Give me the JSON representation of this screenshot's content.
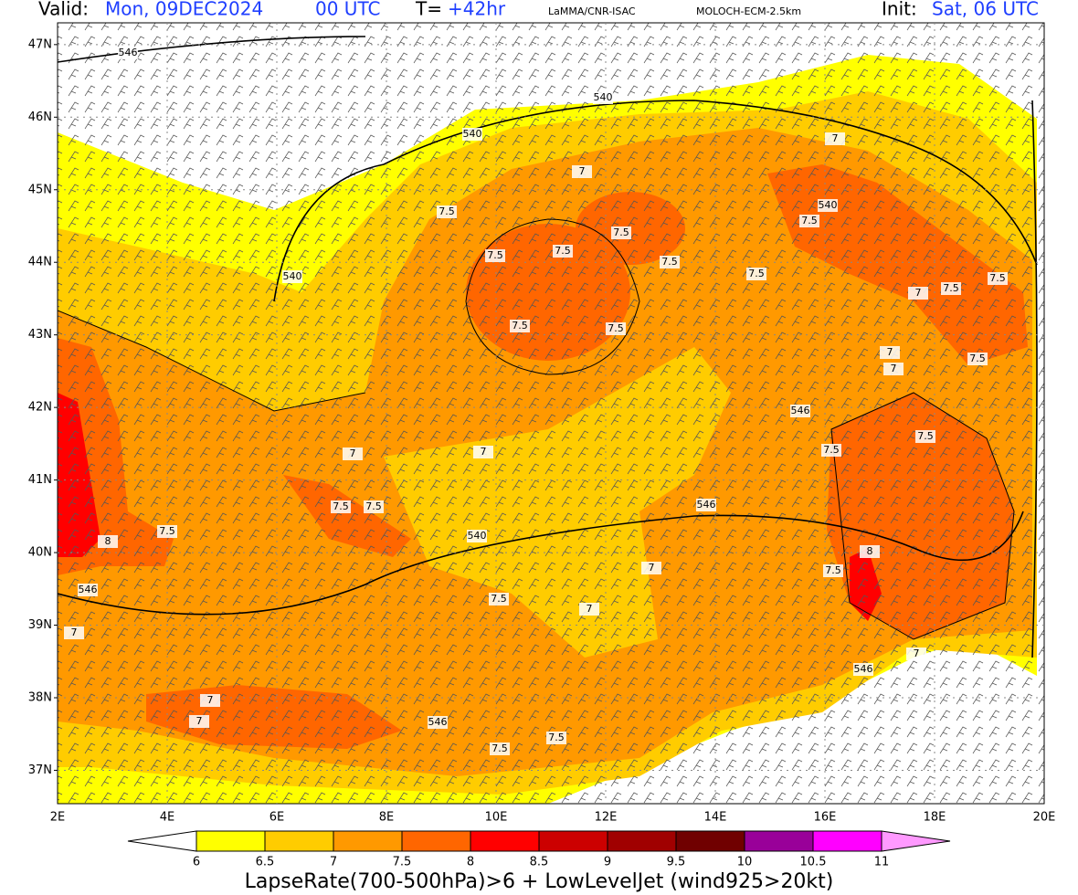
{
  "header": {
    "valid_label": "Valid:",
    "valid_date": "Mon, 09DEC2024",
    "valid_time": "00 UTC",
    "t_label": "T=",
    "t_value": "+42hr",
    "source": "LaMMA/CNR-ISAC",
    "model": "MOLOCH-ECM-2.5km",
    "init_label": "Init:",
    "init_value": "Sat, 06 UTC"
  },
  "map": {
    "xlim": [
      2,
      20
    ],
    "ylim": [
      36.54,
      47.3
    ],
    "xticks": [
      {
        "value": 2,
        "label": "2E"
      },
      {
        "value": 4,
        "label": "4E"
      },
      {
        "value": 6,
        "label": "6E"
      },
      {
        "value": 8,
        "label": "8E"
      },
      {
        "value": 10,
        "label": "10E"
      },
      {
        "value": 12,
        "label": "12E"
      },
      {
        "value": 14,
        "label": "14E"
      },
      {
        "value": 16,
        "label": "16E"
      },
      {
        "value": 18,
        "label": "18E"
      },
      {
        "value": 20,
        "label": "20E"
      }
    ],
    "yticks": [
      {
        "value": 37,
        "label": "37N"
      },
      {
        "value": 38,
        "label": "38N"
      },
      {
        "value": 39,
        "label": "39N"
      },
      {
        "value": 40,
        "label": "40N"
      },
      {
        "value": 41,
        "label": "41N"
      },
      {
        "value": 42,
        "label": "42N"
      },
      {
        "value": 43,
        "label": "43N"
      },
      {
        "value": 44,
        "label": "44N"
      },
      {
        "value": 45,
        "label": "45N"
      },
      {
        "value": 46,
        "label": "46N"
      },
      {
        "value": 47,
        "label": "47N"
      }
    ],
    "grid": true,
    "contour_labels": [
      "546",
      "540",
      "540",
      "540",
      "7",
      "7",
      "7.5",
      "7.5",
      "7.5",
      "7.5",
      "7.5",
      "7.5",
      "540",
      "7.5",
      "7",
      "7.5",
      "7",
      "7",
      "7.5",
      "7.5",
      "8",
      "7.5",
      "546",
      "7",
      "7.5",
      "7.5",
      "540",
      "7.5",
      "7",
      "7",
      "546",
      "7.5",
      "7.5",
      "546",
      "7",
      "546",
      "7",
      "7.5",
      "8",
      "7.5",
      "7",
      "546",
      "7",
      "7",
      "7.5",
      "7.5",
      "7.5"
    ]
  },
  "colorbar": {
    "levels": [
      6,
      6.5,
      7,
      7.5,
      8,
      8.5,
      9,
      9.5,
      10,
      10.5,
      11
    ],
    "colors": [
      "#ffff00",
      "#ffcc00",
      "#ff9900",
      "#ff6600",
      "#ff0000",
      "#cc0000",
      "#a00000",
      "#700000",
      "#990099",
      "#ff00ff"
    ],
    "under_color": "#ffffff",
    "over_color": "#ff99ff"
  },
  "footer": {
    "caption": "LapseRate(700-500hPa)>6 + LowLevelJet (wind925>20kt)"
  }
}
